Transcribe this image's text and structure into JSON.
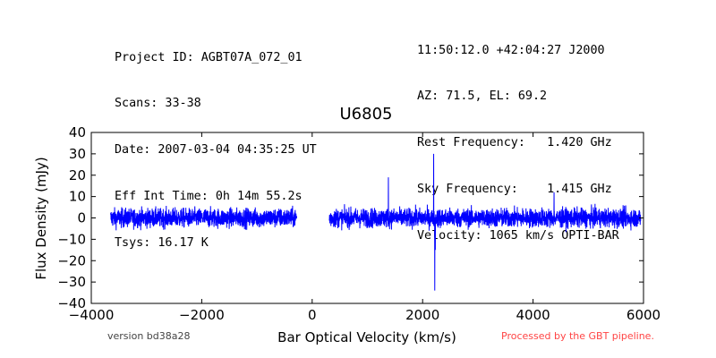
{
  "header": {
    "left": [
      "Project ID: AGBT07A_072_01",
      "Scans: 33-38",
      "Date: 2007-03-04 04:35:25 UT",
      "Eff Int Time: 0h 14m 55.2s",
      "Tsys: 16.17 K"
    ],
    "right": [
      "11:50:12.0 +42:04:27 J2000",
      "AZ: 71.5, EL: 69.2",
      "Rest Frequency:   1.420 GHz",
      "Sky Frequency:    1.415 GHz",
      "Velocity: 1065 km/s OPTI-BAR"
    ]
  },
  "footer": {
    "version": "version bd38a28",
    "pipeline": "Processed by the GBT pipeline."
  },
  "colors": {
    "series": "#0000ff",
    "pipeline_note": "#ff4444",
    "version_note": "#444444"
  },
  "chart_data": {
    "type": "line",
    "title": "U6805",
    "xlabel": "Bar Optical Velocity (km/s)",
    "ylabel": "Flux Density (mJy)",
    "xlim": [
      -4000,
      6000
    ],
    "ylim": [
      -40,
      40
    ],
    "xticks": [
      -4000,
      -2000,
      0,
      2000,
      4000,
      6000
    ],
    "xtick_labels": [
      "−4000",
      "−2000",
      "0",
      "2000",
      "4000",
      "6000"
    ],
    "yticks": [
      -40,
      -30,
      -20,
      -10,
      0,
      10,
      20,
      30,
      40
    ],
    "ytick_labels": [
      "−40",
      "−30",
      "−20",
      "−10",
      "0",
      "10",
      "20",
      "30",
      "40"
    ],
    "grid": false,
    "series": [
      {
        "segments": [
          {
            "x_range": [
              -3650,
              -280
            ],
            "noise_rms": 2.2,
            "baseline": 0
          },
          {
            "x_range": [
              310,
              5950
            ],
            "noise_rms": 2.2,
            "baseline": 0
          }
        ],
        "features": [
          {
            "x": 1050,
            "y": -3
          },
          {
            "x": 1150,
            "y": 3
          },
          {
            "x": 1380,
            "y": 19
          },
          {
            "x": 2200,
            "y": 30
          },
          {
            "x": 2220,
            "y": -34
          },
          {
            "x": 2230,
            "y": -15
          },
          {
            "x": 4380,
            "y": 12
          },
          {
            "x": 4400,
            "y": -3
          }
        ]
      }
    ]
  }
}
